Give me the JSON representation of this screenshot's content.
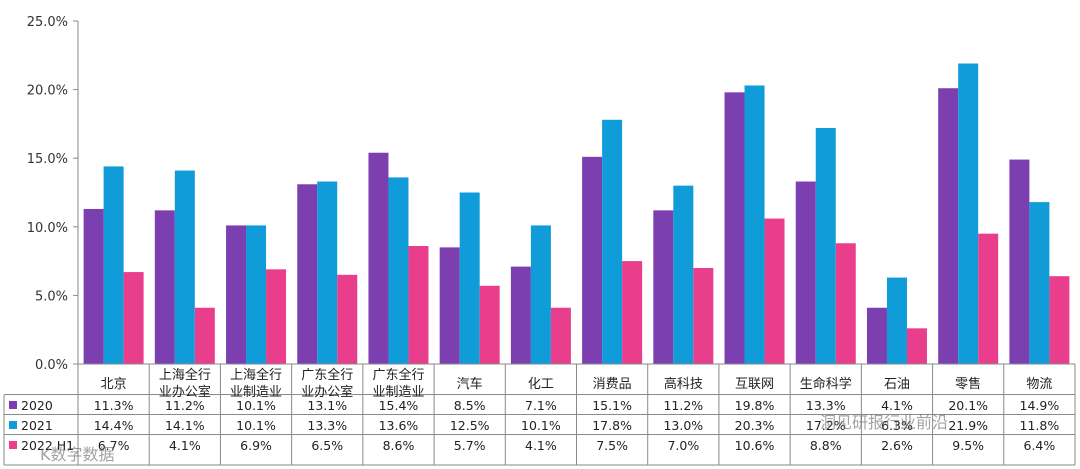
{
  "chart_data": {
    "type": "bar",
    "title": "",
    "xlabel": "",
    "ylabel": "",
    "ylim": [
      0,
      25
    ],
    "y_ticks": [
      "0.0%",
      "5.0%",
      "10.0%",
      "15.0%",
      "20.0%",
      "25.0%"
    ],
    "categories": [
      [
        "北京"
      ],
      [
        "上海全行",
        "业办公室"
      ],
      [
        "上海全行",
        "业制造业"
      ],
      [
        "广东全行",
        "业办公室"
      ],
      [
        "广东全行",
        "业制造业"
      ],
      [
        "汽车"
      ],
      [
        "化工"
      ],
      [
        "消费品"
      ],
      [
        "高科技"
      ],
      [
        "互联网"
      ],
      [
        "生命科学"
      ],
      [
        "石油"
      ],
      [
        "零售"
      ],
      [
        "物流"
      ]
    ],
    "series": [
      {
        "name": "2020",
        "color": "#7B3FB0",
        "values": [
          11.3,
          11.2,
          10.1,
          13.1,
          15.4,
          8.5,
          7.1,
          15.1,
          11.2,
          19.8,
          13.3,
          4.1,
          20.1,
          14.9
        ],
        "labels": [
          "11.3%",
          "11.2%",
          "10.1%",
          "13.1%",
          "15.4%",
          "8.5%",
          "7.1%",
          "15.1%",
          "11.2%",
          "19.8%",
          "13.3%",
          "4.1%",
          "20.1%",
          "14.9%"
        ]
      },
      {
        "name": "2021",
        "color": "#0F9CD8",
        "values": [
          14.4,
          14.1,
          10.1,
          13.3,
          13.6,
          12.5,
          10.1,
          17.8,
          13.0,
          20.3,
          17.2,
          6.3,
          21.9,
          11.8
        ],
        "labels": [
          "14.4%",
          "14.1%",
          "10.1%",
          "13.3%",
          "13.6%",
          "12.5%",
          "10.1%",
          "17.8%",
          "13.0%",
          "20.3%",
          "17.2%",
          "6.3%",
          "21.9%",
          "11.8%"
        ]
      },
      {
        "name": "2022 H1",
        "color": "#E83E8C",
        "values": [
          6.7,
          4.1,
          6.9,
          6.5,
          8.6,
          5.7,
          4.1,
          7.5,
          7.0,
          10.6,
          8.8,
          2.6,
          9.5,
          6.4
        ],
        "labels": [
          "6.7%",
          "4.1%",
          "6.9%",
          "6.5%",
          "8.6%",
          "5.7%",
          "4.1%",
          "7.5%",
          "7.0%",
          "10.6%",
          "8.8%",
          "2.6%",
          "9.5%",
          "6.4%"
        ]
      }
    ],
    "legend": "data-table-left",
    "grid": false
  },
  "watermarks": [
    "K数字数据",
    "洞见研报行业前沿"
  ]
}
